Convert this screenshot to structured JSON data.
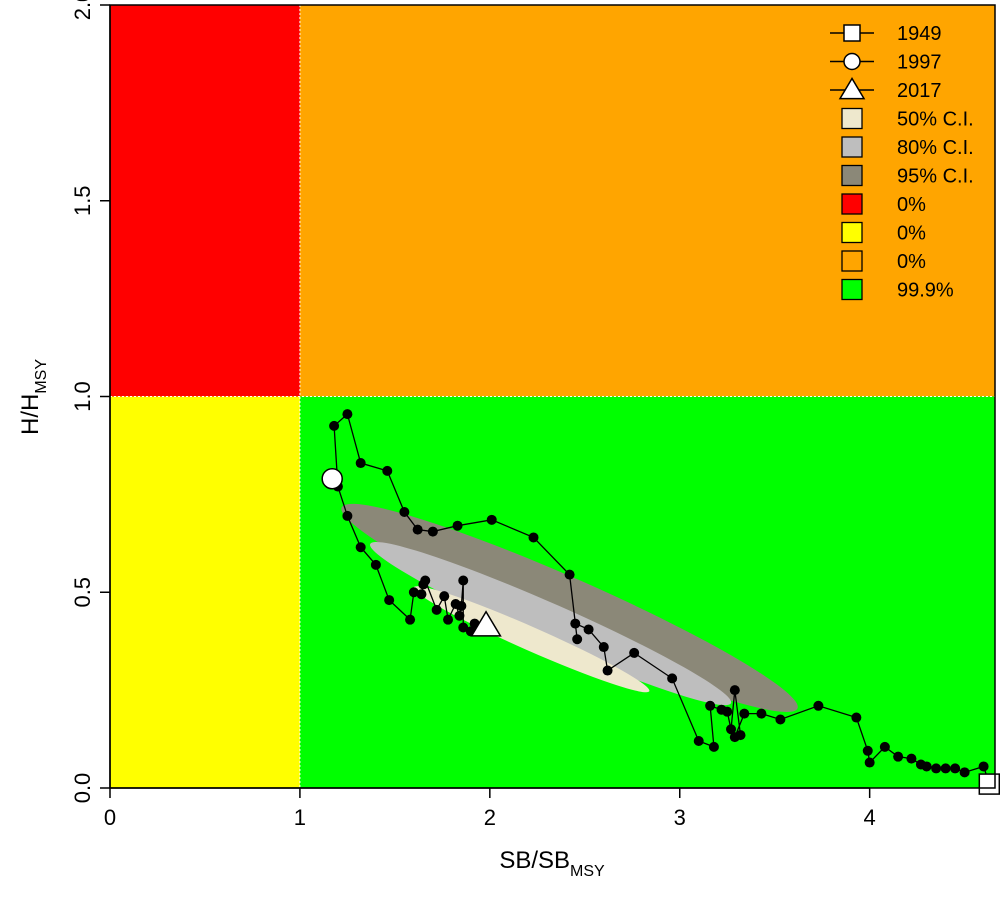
{
  "chart_data": {
    "type": "scatter",
    "title": "",
    "xlabel": {
      "main": "SB",
      "sep": "/",
      "denom": "SB",
      "sub": "MSY"
    },
    "ylabel": {
      "main": "H",
      "sep": "/",
      "denom": "H",
      "sub": "MSY"
    },
    "xlim": [
      0,
      4.66
    ],
    "ylim": [
      0,
      2.0
    ],
    "x_ticks": [
      {
        "value": 0,
        "label": "0"
      },
      {
        "value": 1,
        "label": "1"
      },
      {
        "value": 2,
        "label": "2"
      },
      {
        "value": 3,
        "label": "3"
      },
      {
        "value": 4,
        "label": "4"
      }
    ],
    "y_ticks": [
      {
        "value": 0,
        "label": "0.0"
      },
      {
        "value": 0.5,
        "label": "0.5"
      },
      {
        "value": 1.0,
        "label": "1.0"
      },
      {
        "value": 1.5,
        "label": "1.5"
      },
      {
        "value": 2.0,
        "label": "2.0"
      }
    ],
    "grid": false,
    "legend_position": "top-right",
    "zones": [
      {
        "id": "red",
        "x": [
          0,
          1
        ],
        "y": [
          1,
          2
        ],
        "color": "#ff0000"
      },
      {
        "id": "orange",
        "x": [
          1,
          4.66
        ],
        "y": [
          1,
          2
        ],
        "color": "#ffa500"
      },
      {
        "id": "yellow",
        "x": [
          0,
          1
        ],
        "y": [
          0,
          1
        ],
        "color": "#ffff00"
      },
      {
        "id": "green",
        "x": [
          1,
          4.66
        ],
        "y": [
          0,
          1
        ],
        "color": "#00ff00"
      }
    ],
    "confidence_regions": [
      {
        "level": "95%",
        "color": "#8b8878",
        "center": [
          2.42,
          0.46
        ],
        "radii": [
          1.2,
          0.075
        ],
        "slope": -0.214
      },
      {
        "level": "80%",
        "color": "#bebebe",
        "center": [
          2.32,
          0.42
        ],
        "radii": [
          0.95,
          0.05
        ],
        "slope": -0.214
      },
      {
        "level": "50%",
        "color": "#eee8cd",
        "center": [
          2.22,
          0.38
        ],
        "radii": [
          0.62,
          0.03
        ],
        "slope": -0.214
      }
    ],
    "trajectory": {
      "name": "",
      "color": "#000000",
      "points": [
        [
          4.63,
          0.01
        ],
        [
          4.6,
          0.055
        ],
        [
          4.5,
          0.04
        ],
        [
          4.45,
          0.05
        ],
        [
          4.4,
          0.05
        ],
        [
          4.35,
          0.05
        ],
        [
          4.3,
          0.055
        ],
        [
          4.27,
          0.06
        ],
        [
          4.22,
          0.075
        ],
        [
          4.15,
          0.08
        ],
        [
          4.08,
          0.105
        ],
        [
          4.0,
          0.065
        ],
        [
          3.99,
          0.095
        ],
        [
          3.93,
          0.18
        ],
        [
          3.73,
          0.21
        ],
        [
          3.53,
          0.175
        ],
        [
          3.43,
          0.19
        ],
        [
          3.34,
          0.19
        ],
        [
          3.29,
          0.13
        ],
        [
          3.32,
          0.135
        ],
        [
          3.29,
          0.25
        ],
        [
          3.27,
          0.15
        ],
        [
          3.25,
          0.195
        ],
        [
          3.22,
          0.2
        ],
        [
          3.16,
          0.21
        ],
        [
          3.18,
          0.105
        ],
        [
          3.1,
          0.12
        ],
        [
          2.96,
          0.28
        ],
        [
          2.76,
          0.345
        ],
        [
          2.62,
          0.3
        ],
        [
          2.6,
          0.36
        ],
        [
          2.52,
          0.405
        ],
        [
          2.45,
          0.42
        ],
        [
          2.46,
          0.38
        ],
        [
          2.42,
          0.545
        ],
        [
          2.23,
          0.64
        ],
        [
          2.01,
          0.685
        ],
        [
          1.83,
          0.67
        ],
        [
          1.7,
          0.655
        ],
        [
          1.62,
          0.66
        ],
        [
          1.55,
          0.705
        ],
        [
          1.46,
          0.81
        ],
        [
          1.32,
          0.83
        ],
        [
          1.25,
          0.955
        ],
        [
          1.18,
          0.925
        ],
        [
          1.2,
          0.77
        ],
        [
          1.25,
          0.695
        ],
        [
          1.32,
          0.615
        ],
        [
          1.4,
          0.57
        ],
        [
          1.47,
          0.48
        ],
        [
          1.58,
          0.43
        ],
        [
          1.6,
          0.5
        ],
        [
          1.64,
          0.495
        ],
        [
          1.65,
          0.52
        ],
        [
          1.66,
          0.53
        ],
        [
          1.72,
          0.455
        ],
        [
          1.76,
          0.49
        ],
        [
          1.78,
          0.43
        ],
        [
          1.82,
          0.47
        ],
        [
          1.84,
          0.44
        ],
        [
          1.85,
          0.465
        ],
        [
          1.86,
          0.53
        ],
        [
          1.86,
          0.41
        ],
        [
          1.9,
          0.4
        ],
        [
          1.92,
          0.42
        ]
      ]
    },
    "markers": [
      {
        "label": "1949",
        "shape": "square",
        "x": 4.63,
        "y": 0.01
      },
      {
        "label": "1997",
        "shape": "circle",
        "x": 1.17,
        "y": 0.79
      },
      {
        "label": "2017",
        "shape": "triangle",
        "x": 1.98,
        "y": 0.415
      }
    ],
    "legend": [
      {
        "label": "1949",
        "kind": "line-square"
      },
      {
        "label": "1997",
        "kind": "line-circle"
      },
      {
        "label": "2017",
        "kind": "line-triangle"
      },
      {
        "label": "50% C.I.",
        "kind": "box",
        "color": "#eee8cd"
      },
      {
        "label": "80% C.I.",
        "kind": "box",
        "color": "#bebebe"
      },
      {
        "label": "95% C.I.",
        "kind": "box",
        "color": "#8b8878"
      },
      {
        "label": "0%",
        "kind": "box",
        "color": "#ff0000"
      },
      {
        "label": "0%",
        "kind": "box",
        "color": "#ffff00"
      },
      {
        "label": "0%",
        "kind": "box",
        "color": "#ffa500"
      },
      {
        "label": "99.9%",
        "kind": "box",
        "color": "#00ff00"
      }
    ]
  }
}
